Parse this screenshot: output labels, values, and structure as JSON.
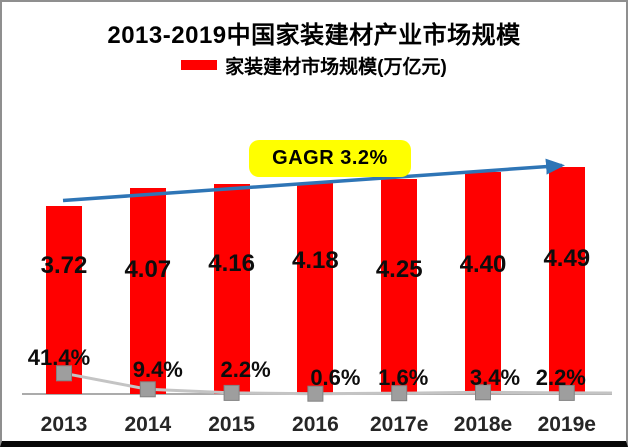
{
  "title": "2013-2019中国家装建材产业市场规模",
  "legend": {
    "label": "家装建材市场规模(万亿元)",
    "swatch_color": "#ff0000"
  },
  "annotation": {
    "label": "GAGR 3.2%",
    "bg_color": "#ffff00",
    "text_color": "#000000"
  },
  "colors": {
    "bar": "#ff0000",
    "growth_line": "#c4c4c4",
    "growth_marker": "#9e9e9e",
    "growth_marker_border": "#828282",
    "trend_arrow": "#2e75b6",
    "axis_line": "#ababab"
  },
  "chart_data": {
    "type": "bar",
    "title": "2013-2019中国家装建材产业市场规模",
    "categories": [
      "2013",
      "2014",
      "2015",
      "2016",
      "2017e",
      "2018e",
      "2019e"
    ],
    "series": [
      {
        "name": "家装建材市场规模(万亿元)",
        "type": "bar",
        "color": "#ff0000",
        "values": [
          3.72,
          4.07,
          4.16,
          4.18,
          4.25,
          4.4,
          4.49
        ],
        "labels": [
          "3.72",
          "4.07",
          "4.16",
          "4.18",
          "4.25",
          "4.40",
          "4.49"
        ]
      },
      {
        "name": "",
        "type": "line",
        "color": "#c4c4c4",
        "marker": "square",
        "marker_color": "#9e9e9e",
        "values": [
          41.4,
          9.4,
          2.2,
          0.6,
          1.6,
          3.4,
          2.2
        ],
        "labels": [
          "41.4%",
          "9.4%",
          "2.2%",
          "0.6%",
          "1.6%",
          "3.4%",
          "2.2%"
        ]
      }
    ],
    "annotations": [
      {
        "text": "GAGR 3.2%",
        "shape": "rounded-yellow-box",
        "arrow": "blue-trend-arrow-up-right"
      }
    ],
    "xlabel": "",
    "ylabel": "",
    "value_unit": "万亿元",
    "grid": false,
    "legend_position": "top"
  }
}
